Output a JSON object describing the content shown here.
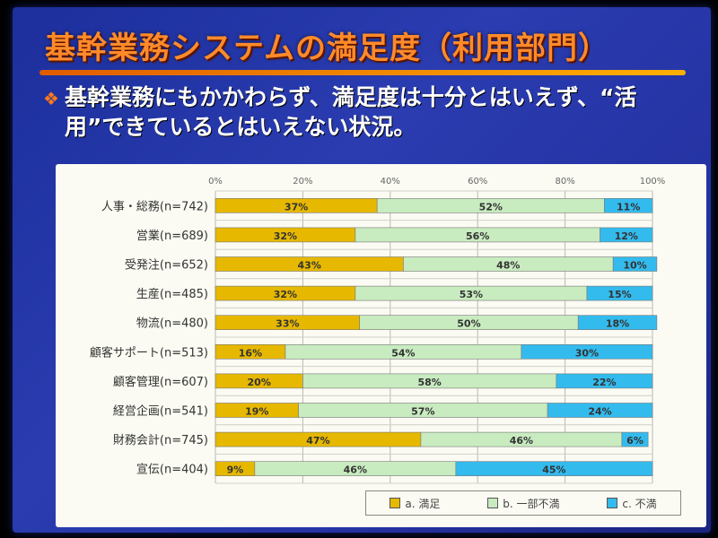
{
  "title": "基幹業務システムの満足度（利用部門）",
  "bullet_icon": "diamond-bullet-icon",
  "bullet_text": "基幹業務にもかかわらず、満足度は十分とはいえず、“活用”できているとはいえない状況。",
  "colors": {
    "a": "#e6b800",
    "b": "#c8ebc0",
    "c": "#33bbee"
  },
  "chart_data": {
    "type": "bar",
    "orientation": "horizontal",
    "stacked": true,
    "xlim": [
      0,
      100
    ],
    "xticks": [
      "0%",
      "20%",
      "40%",
      "60%",
      "80%",
      "100%"
    ],
    "categories": [
      "人事・総務(n=742)",
      "営業(n=689)",
      "受発注(n=652)",
      "生産(n=485)",
      "物流(n=480)",
      "顧客サポート(n=513)",
      "顧客管理(n=607)",
      "経営企画(n=541)",
      "財務会計(n=745)",
      "宣伝(n=404)"
    ],
    "series": [
      {
        "name": "a. 満足",
        "values": [
          37,
          32,
          43,
          32,
          33,
          16,
          20,
          19,
          47,
          9
        ]
      },
      {
        "name": "b. 一部不満",
        "values": [
          52,
          56,
          48,
          53,
          50,
          54,
          58,
          57,
          46,
          46
        ]
      },
      {
        "name": "c. 不満",
        "values": [
          11,
          12,
          10,
          15,
          18,
          30,
          22,
          24,
          6,
          45
        ]
      }
    ],
    "legend": "bottom-right",
    "grid": true
  }
}
